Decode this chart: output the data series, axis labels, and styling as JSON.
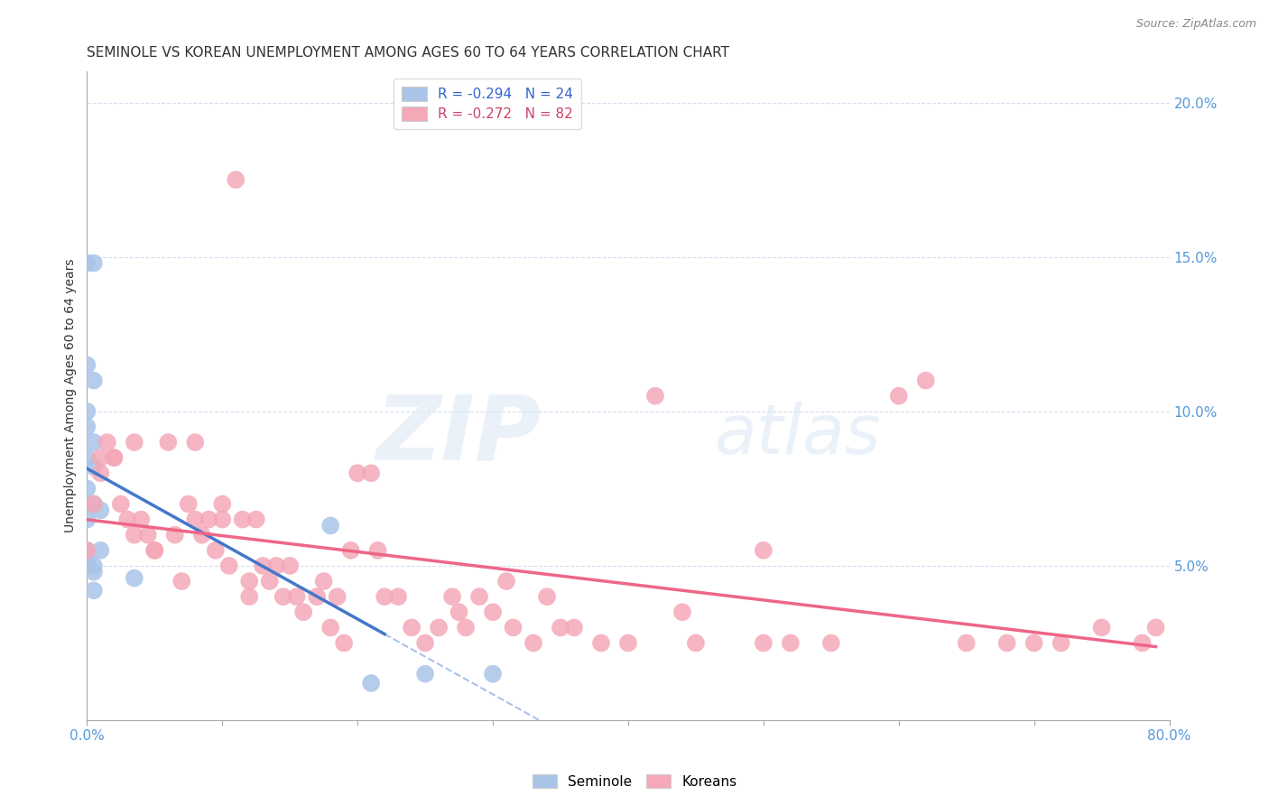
{
  "title": "SEMINOLE VS KOREAN UNEMPLOYMENT AMONG AGES 60 TO 64 YEARS CORRELATION CHART",
  "source": "Source: ZipAtlas.com",
  "ylabel": "Unemployment Among Ages 60 to 64 years",
  "xlim": [
    0.0,
    0.8
  ],
  "ylim": [
    0.0,
    0.21
  ],
  "yticks": [
    0.05,
    0.1,
    0.15,
    0.2
  ],
  "ytick_labels": [
    "5.0%",
    "10.0%",
    "15.0%",
    "20.0%"
  ],
  "seminole_color": "#aac4e8",
  "korean_color": "#f4a8b8",
  "seminole_line_color": "#4477cc",
  "korean_line_color": "#ee6688",
  "watermark_text": "ZIPatlas",
  "seminole_x": [
    0.0,
    0.005,
    0.0,
    0.005,
    0.0,
    0.0,
    0.005,
    0.0,
    0.005,
    0.0,
    0.005,
    0.01,
    0.0,
    0.0,
    0.01,
    0.0,
    0.005,
    0.005,
    0.005,
    0.18,
    0.21,
    0.25,
    0.3,
    0.035
  ],
  "seminole_y": [
    0.148,
    0.148,
    0.115,
    0.11,
    0.1,
    0.095,
    0.09,
    0.085,
    0.082,
    0.075,
    0.07,
    0.068,
    0.065,
    0.055,
    0.055,
    0.052,
    0.05,
    0.048,
    0.042,
    0.063,
    0.012,
    0.015,
    0.015,
    0.046
  ],
  "korean_x": [
    0.0,
    0.005,
    0.01,
    0.01,
    0.015,
    0.02,
    0.02,
    0.025,
    0.03,
    0.035,
    0.035,
    0.04,
    0.045,
    0.05,
    0.05,
    0.06,
    0.065,
    0.07,
    0.075,
    0.08,
    0.08,
    0.085,
    0.09,
    0.095,
    0.1,
    0.1,
    0.105,
    0.11,
    0.115,
    0.12,
    0.12,
    0.125,
    0.13,
    0.135,
    0.14,
    0.145,
    0.15,
    0.155,
    0.16,
    0.17,
    0.175,
    0.18,
    0.185,
    0.19,
    0.195,
    0.2,
    0.21,
    0.215,
    0.22,
    0.23,
    0.24,
    0.25,
    0.26,
    0.27,
    0.275,
    0.28,
    0.29,
    0.3,
    0.31,
    0.315,
    0.33,
    0.34,
    0.35,
    0.36,
    0.38,
    0.4,
    0.42,
    0.44,
    0.45,
    0.5,
    0.52,
    0.55,
    0.6,
    0.62,
    0.65,
    0.68,
    0.7,
    0.72,
    0.75,
    0.78,
    0.79,
    0.5
  ],
  "korean_y": [
    0.055,
    0.07,
    0.08,
    0.085,
    0.09,
    0.085,
    0.085,
    0.07,
    0.065,
    0.06,
    0.09,
    0.065,
    0.06,
    0.055,
    0.055,
    0.09,
    0.06,
    0.045,
    0.07,
    0.09,
    0.065,
    0.06,
    0.065,
    0.055,
    0.07,
    0.065,
    0.05,
    0.175,
    0.065,
    0.045,
    0.04,
    0.065,
    0.05,
    0.045,
    0.05,
    0.04,
    0.05,
    0.04,
    0.035,
    0.04,
    0.045,
    0.03,
    0.04,
    0.025,
    0.055,
    0.08,
    0.08,
    0.055,
    0.04,
    0.04,
    0.03,
    0.025,
    0.03,
    0.04,
    0.035,
    0.03,
    0.04,
    0.035,
    0.045,
    0.03,
    0.025,
    0.04,
    0.03,
    0.03,
    0.025,
    0.025,
    0.105,
    0.035,
    0.025,
    0.025,
    0.025,
    0.025,
    0.105,
    0.11,
    0.025,
    0.025,
    0.025,
    0.025,
    0.03,
    0.025,
    0.03,
    0.055
  ],
  "title_fontsize": 11,
  "axis_label_fontsize": 10,
  "tick_fontsize": 11
}
